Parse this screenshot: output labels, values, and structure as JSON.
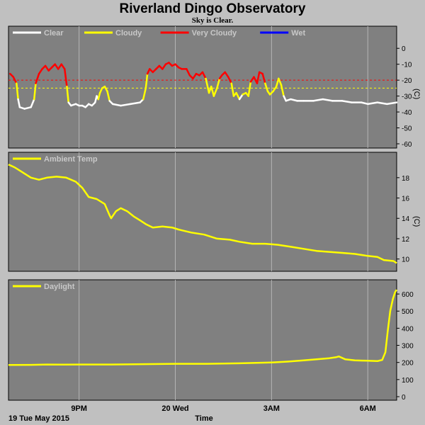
{
  "header": {
    "title": "Riverland Dingo Observatory",
    "subtitle": "Sky is Clear."
  },
  "footer": {
    "date_label": "19 Tue May 2015",
    "axis_label": "Time"
  },
  "colors": {
    "panel_bg": "#808080",
    "page_bg": "#c0c0c0",
    "grid": "#b4b4b4",
    "clear": "#ffffff",
    "cloudy": "#ffff00",
    "very_cloudy": "#ff0000",
    "wet": "#0000ff",
    "threshold_red": "#ff0000",
    "threshold_yellow": "#ffff00"
  },
  "chart_data": [
    {
      "type": "line",
      "name": "sky-temp",
      "xlabel": "Time",
      "ylabel": "(C)",
      "ylim": [
        -60,
        5
      ],
      "yticks": [
        0,
        -10,
        -20,
        -30,
        -40,
        -50,
        -60
      ],
      "xticks": [
        {
          "label": "9PM",
          "x": 21
        },
        {
          "label": "20 Wed",
          "x": 24
        },
        {
          "label": "3AM",
          "x": 27
        },
        {
          "label": "6AM",
          "x": 30
        }
      ],
      "xlim": [
        18.8,
        30.9
      ],
      "thresholds": [
        {
          "value": -20,
          "color": "red"
        },
        {
          "value": -25,
          "color": "yellow"
        }
      ],
      "legend": [
        {
          "label": "Clear",
          "color": "#ffffff"
        },
        {
          "label": "Cloudy",
          "color": "#ffff00"
        },
        {
          "label": "Very Cloudy",
          "color": "#ff0000"
        },
        {
          "label": "Wet",
          "color": "#0000ff"
        }
      ],
      "series": [
        {
          "name": "Sky temperature",
          "points": [
            [
              18.85,
              -16
            ],
            [
              18.95,
              -18
            ],
            [
              19.05,
              -22
            ],
            [
              19.1,
              -32
            ],
            [
              19.15,
              -37
            ],
            [
              19.3,
              -38
            ],
            [
              19.5,
              -37
            ],
            [
              19.6,
              -32
            ],
            [
              19.65,
              -22
            ],
            [
              19.75,
              -16
            ],
            [
              19.85,
              -13
            ],
            [
              19.95,
              -11
            ],
            [
              20.05,
              -14
            ],
            [
              20.15,
              -12
            ],
            [
              20.25,
              -10
            ],
            [
              20.35,
              -13
            ],
            [
              20.45,
              -10
            ],
            [
              20.55,
              -13
            ],
            [
              20.62,
              -24
            ],
            [
              20.67,
              -34
            ],
            [
              20.75,
              -36
            ],
            [
              20.9,
              -35
            ],
            [
              21.0,
              -36
            ],
            [
              21.1,
              -36
            ],
            [
              21.2,
              -37
            ],
            [
              21.3,
              -35
            ],
            [
              21.4,
              -36
            ],
            [
              21.5,
              -34
            ],
            [
              21.55,
              -30
            ],
            [
              21.6,
              -32
            ],
            [
              21.65,
              -28
            ],
            [
              21.72,
              -25
            ],
            [
              21.8,
              -24
            ],
            [
              21.88,
              -27
            ],
            [
              21.95,
              -33
            ],
            [
              22.05,
              -35
            ],
            [
              22.3,
              -36
            ],
            [
              22.6,
              -35
            ],
            [
              22.9,
              -34
            ],
            [
              23.0,
              -32
            ],
            [
              23.08,
              -25
            ],
            [
              23.13,
              -16
            ],
            [
              23.2,
              -13
            ],
            [
              23.3,
              -15
            ],
            [
              23.4,
              -13
            ],
            [
              23.5,
              -11
            ],
            [
              23.6,
              -13
            ],
            [
              23.7,
              -10
            ],
            [
              23.8,
              -9
            ],
            [
              23.9,
              -11
            ],
            [
              24.0,
              -10
            ],
            [
              24.1,
              -12
            ],
            [
              24.2,
              -13
            ],
            [
              24.35,
              -13
            ],
            [
              24.45,
              -17
            ],
            [
              24.55,
              -19
            ],
            [
              24.65,
              -16
            ],
            [
              24.75,
              -17
            ],
            [
              24.85,
              -15
            ],
            [
              24.95,
              -19
            ],
            [
              25.05,
              -28
            ],
            [
              25.12,
              -24
            ],
            [
              25.2,
              -30
            ],
            [
              25.3,
              -25
            ],
            [
              25.38,
              -19
            ],
            [
              25.45,
              -17
            ],
            [
              25.55,
              -15
            ],
            [
              25.65,
              -18
            ],
            [
              25.75,
              -22
            ],
            [
              25.82,
              -30
            ],
            [
              25.9,
              -28
            ],
            [
              26.0,
              -32
            ],
            [
              26.1,
              -29
            ],
            [
              26.2,
              -28
            ],
            [
              26.28,
              -30
            ],
            [
              26.35,
              -21
            ],
            [
              26.45,
              -18
            ],
            [
              26.55,
              -22
            ],
            [
              26.62,
              -15
            ],
            [
              26.72,
              -16
            ],
            [
              26.8,
              -22
            ],
            [
              26.88,
              -27
            ],
            [
              26.95,
              -29
            ],
            [
              27.05,
              -27
            ],
            [
              27.15,
              -24
            ],
            [
              27.22,
              -19
            ],
            [
              27.3,
              -23
            ],
            [
              27.38,
              -30
            ],
            [
              27.45,
              -33
            ],
            [
              27.6,
              -32
            ],
            [
              27.8,
              -33
            ],
            [
              28.0,
              -33
            ],
            [
              28.3,
              -33
            ],
            [
              28.6,
              -32
            ],
            [
              28.9,
              -33
            ],
            [
              29.2,
              -33
            ],
            [
              29.5,
              -34
            ],
            [
              29.8,
              -34
            ],
            [
              30.0,
              -35
            ],
            [
              30.3,
              -34
            ],
            [
              30.6,
              -35
            ],
            [
              30.9,
              -34
            ]
          ]
        }
      ]
    },
    {
      "type": "line",
      "name": "ambient-temp",
      "ylabel": "(C)",
      "ylim": [
        9,
        19.8
      ],
      "yticks": [
        10,
        12,
        14,
        16,
        18
      ],
      "xlim": [
        18.8,
        30.9
      ],
      "legend": [
        {
          "label": "Ambient Temp",
          "color": "#ffff00"
        }
      ],
      "series": [
        {
          "name": "Ambient Temp",
          "color": "#ffff00",
          "points": [
            [
              18.8,
              19.3
            ],
            [
              19.0,
              19.0
            ],
            [
              19.2,
              18.6
            ],
            [
              19.5,
              18.0
            ],
            [
              19.75,
              17.8
            ],
            [
              20.0,
              18.0
            ],
            [
              20.3,
              18.1
            ],
            [
              20.6,
              18.0
            ],
            [
              20.9,
              17.6
            ],
            [
              21.1,
              17.0
            ],
            [
              21.3,
              16.1
            ],
            [
              21.55,
              15.9
            ],
            [
              21.8,
              15.4
            ],
            [
              21.95,
              14.3
            ],
            [
              22.0,
              14.0
            ],
            [
              22.15,
              14.7
            ],
            [
              22.3,
              15.0
            ],
            [
              22.5,
              14.7
            ],
            [
              22.7,
              14.2
            ],
            [
              22.9,
              13.8
            ],
            [
              23.1,
              13.4
            ],
            [
              23.3,
              13.1
            ],
            [
              23.6,
              13.2
            ],
            [
              23.9,
              13.1
            ],
            [
              24.1,
              12.9
            ],
            [
              24.5,
              12.6
            ],
            [
              24.9,
              12.4
            ],
            [
              25.3,
              12.0
            ],
            [
              25.7,
              11.9
            ],
            [
              26.0,
              11.7
            ],
            [
              26.4,
              11.5
            ],
            [
              26.8,
              11.5
            ],
            [
              27.2,
              11.4
            ],
            [
              27.6,
              11.2
            ],
            [
              28.0,
              11.0
            ],
            [
              28.4,
              10.8
            ],
            [
              28.8,
              10.7
            ],
            [
              29.2,
              10.6
            ],
            [
              29.6,
              10.5
            ],
            [
              30.0,
              10.3
            ],
            [
              30.3,
              10.2
            ],
            [
              30.5,
              9.9
            ],
            [
              30.8,
              9.8
            ],
            [
              30.9,
              9.6
            ]
          ]
        }
      ]
    },
    {
      "type": "line",
      "name": "daylight",
      "ylim": [
        0,
        650
      ],
      "yticks": [
        0,
        100,
        200,
        300,
        400,
        500,
        600
      ],
      "xlim": [
        18.8,
        30.9
      ],
      "legend": [
        {
          "label": "Daylight",
          "color": "#ffff00"
        }
      ],
      "series": [
        {
          "name": "Daylight",
          "color": "#ffff00",
          "points": [
            [
              18.8,
              185
            ],
            [
              19.5,
              186
            ],
            [
              20.0,
              188
            ],
            [
              20.5,
              187
            ],
            [
              21.0,
              188
            ],
            [
              22.0,
              188
            ],
            [
              23.0,
              190
            ],
            [
              24.0,
              192
            ],
            [
              25.0,
              192
            ],
            [
              26.0,
              195
            ],
            [
              27.0,
              200
            ],
            [
              27.5,
              205
            ],
            [
              28.0,
              212
            ],
            [
              28.5,
              220
            ],
            [
              28.8,
              225
            ],
            [
              29.0,
              230
            ],
            [
              29.1,
              235
            ],
            [
              29.3,
              218
            ],
            [
              29.6,
              212
            ],
            [
              30.0,
              210
            ],
            [
              30.3,
              208
            ],
            [
              30.45,
              215
            ],
            [
              30.55,
              260
            ],
            [
              30.62,
              380
            ],
            [
              30.7,
              500
            ],
            [
              30.78,
              570
            ],
            [
              30.85,
              610
            ],
            [
              30.9,
              625
            ]
          ]
        }
      ]
    }
  ]
}
